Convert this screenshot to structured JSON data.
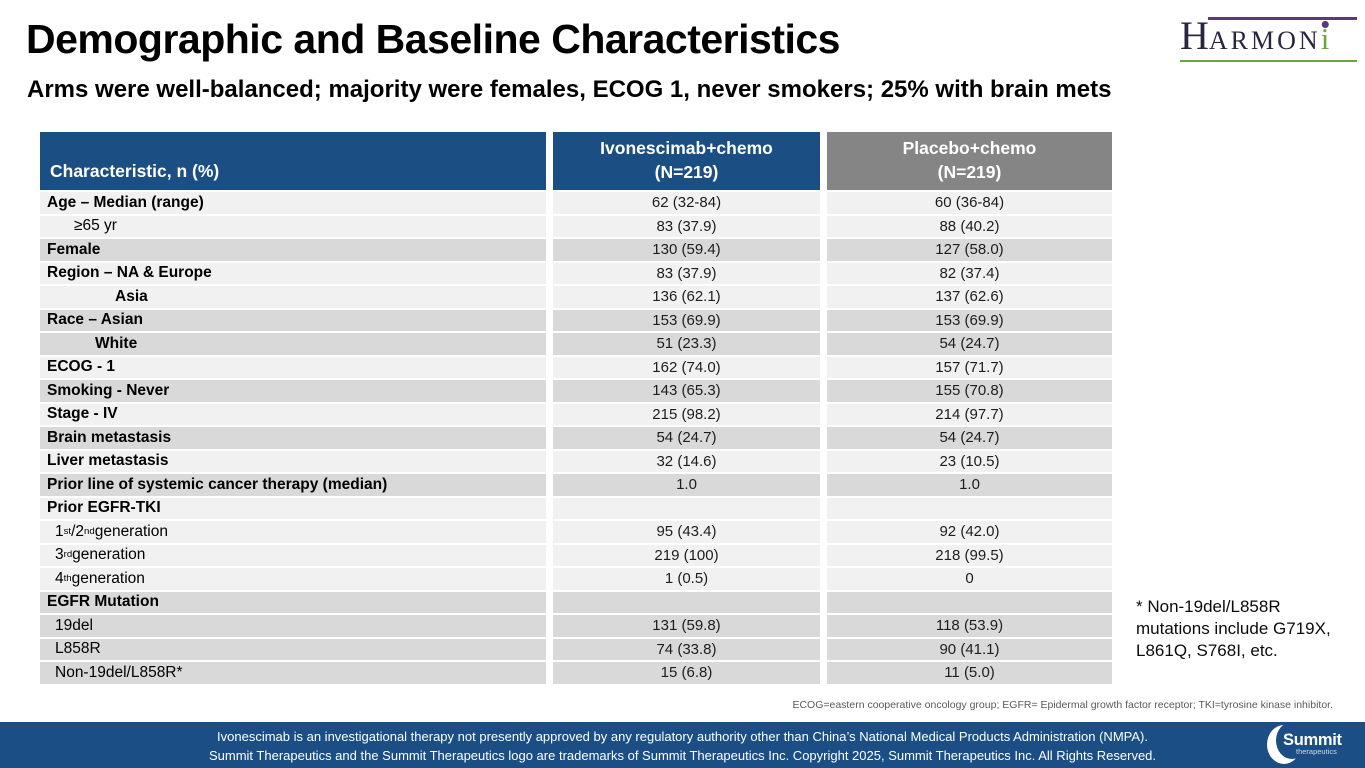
{
  "header": {
    "title": "Demographic and Baseline Characteristics",
    "subtitle": "Arms were well-balanced; majority were females, ECOG 1, never smokers; 25% with brain mets"
  },
  "harmoni_logo": {
    "letter_h": "H",
    "letters_rest": "ARMON",
    "letter_i": "i"
  },
  "table": {
    "columns": {
      "characteristic": "Characteristic, n (%)",
      "ivonescimab": {
        "line1": "Ivonescimab+chemo",
        "line2": "(N=219)"
      },
      "placebo": {
        "line1": "Placebo+chemo",
        "line2": "(N=219)"
      }
    },
    "rows": [
      {
        "label": "Age – Median (range)",
        "indent": 0,
        "bold": true,
        "shade": "light",
        "ivonescimab": "62 (32-84)",
        "placebo": "60 (36-84)"
      },
      {
        "label": "≥65 yr",
        "indent": 27,
        "bold": false,
        "shade": "light",
        "ivonescimab": "83 (37.9)",
        "placebo": "88 (40.2)"
      },
      {
        "label": "Female",
        "indent": 0,
        "bold": true,
        "shade": "dark",
        "ivonescimab": "130 (59.4)",
        "placebo": "127 (58.0)"
      },
      {
        "label": "Region – NA & Europe",
        "indent": 0,
        "bold": true,
        "shade": "light",
        "ivonescimab": "83 (37.9)",
        "placebo": "82 (37.4)"
      },
      {
        "label": "Asia",
        "indent": 68,
        "bold": true,
        "shade": "light",
        "ivonescimab": "136 (62.1)",
        "placebo": "137 (62.6)"
      },
      {
        "label": "Race – Asian",
        "indent": 0,
        "bold": true,
        "shade": "dark",
        "ivonescimab": "153 (69.9)",
        "placebo": "153 (69.9)"
      },
      {
        "label": "White",
        "indent": 48,
        "bold": true,
        "shade": "dark",
        "ivonescimab": "51 (23.3)",
        "placebo": "54 (24.7)"
      },
      {
        "label": "ECOG - 1",
        "indent": 0,
        "bold": true,
        "shade": "light",
        "ivonescimab": "162 (74.0)",
        "placebo": "157 (71.7)"
      },
      {
        "label": "Smoking - Never",
        "indent": 0,
        "bold": true,
        "shade": "dark",
        "ivonescimab": "143 (65.3)",
        "placebo": "155 (70.8)"
      },
      {
        "label": "Stage - IV",
        "indent": 0,
        "bold": true,
        "shade": "light",
        "ivonescimab": "215 (98.2)",
        "placebo": "214 (97.7)"
      },
      {
        "label": "Brain metastasis",
        "indent": 0,
        "bold": true,
        "shade": "dark",
        "ivonescimab": "54 (24.7)",
        "placebo": "54 (24.7)"
      },
      {
        "label": "Liver metastasis",
        "indent": 0,
        "bold": true,
        "shade": "light",
        "ivonescimab": "32 (14.6)",
        "placebo": "23 (10.5)"
      },
      {
        "label": "Prior line of systemic cancer therapy (median)",
        "indent": 0,
        "bold": true,
        "shade": "dark",
        "ivonescimab": "1.0",
        "placebo": "1.0"
      },
      {
        "label": "Prior EGFR-TKI",
        "indent": 0,
        "bold": true,
        "shade": "light",
        "ivonescimab": "",
        "placebo": ""
      },
      {
        "label": "1^st^/2^nd^ generation",
        "indent": 8,
        "bold": false,
        "shade": "light",
        "ivonescimab": "95 (43.4)",
        "placebo": "92 (42.0)"
      },
      {
        "label": "3^rd^ generation",
        "indent": 8,
        "bold": false,
        "shade": "light",
        "ivonescimab": "219 (100)",
        "placebo": "218 (99.5)"
      },
      {
        "label": "4^th^ generation",
        "indent": 8,
        "bold": false,
        "shade": "light",
        "ivonescimab": "1 (0.5)",
        "placebo": "0"
      },
      {
        "label": "EGFR Mutation",
        "indent": 0,
        "bold": true,
        "shade": "dark",
        "ivonescimab": "",
        "placebo": ""
      },
      {
        "label": "19del",
        "indent": 8,
        "bold": false,
        "shade": "dark",
        "ivonescimab": "131 (59.8)",
        "placebo": "118 (53.9)"
      },
      {
        "label": "L858R",
        "indent": 8,
        "bold": false,
        "shade": "dark",
        "ivonescimab": "74 (33.8)",
        "placebo": "90 (41.1)"
      },
      {
        "label": "Non-19del/L858R*",
        "indent": 8,
        "bold": false,
        "shade": "dark",
        "ivonescimab": "15 (6.8)",
        "placebo": "11 (5.0)"
      }
    ]
  },
  "side_note": "* Non-19del/L858R mutations include G719X, L861Q, S768I, etc.",
  "abbrev_note": "ECOG=eastern cooperative oncology group; EGFR= Epidermal growth factor receptor; TKI=tyrosine kinase inhibitor.",
  "footer": {
    "line1": "Ivonescimab is an investigational therapy not presently approved by any regulatory authority other than China’s National Medical Products Administration (NMPA).",
    "line2": "Summit Therapeutics and the Summit Therapeutics logo are trademarks of Summit Therapeutics Inc. Copyright 2025, Summit Therapeutics Inc. All Rights Reserved.",
    "logo_text": "Summit",
    "logo_subtext": "therapeutics"
  },
  "colors": {
    "header_blue": "#1b4e82",
    "header_gray": "#858585",
    "row_light": "#f1f1f1",
    "row_dark": "#d9d9d9",
    "footer_blue": "#1a4e85",
    "logo_green": "#6aa63c",
    "logo_purple": "#5b3a77"
  }
}
